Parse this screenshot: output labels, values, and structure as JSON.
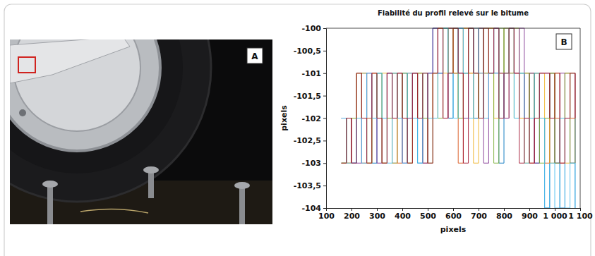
{
  "photo": {
    "panel_label": "A"
  },
  "chart_data": {
    "type": "line",
    "title": "Fiabilité du profil relevé sur le bitume",
    "x_label": "pixels",
    "y_label": "pixels",
    "panel_label": "B",
    "line_style": "step",
    "xlim": [
      100,
      1100
    ],
    "ylim": [
      -104,
      -100
    ],
    "xticks": [
      100,
      200,
      300,
      400,
      500,
      600,
      700,
      800,
      900,
      {
        "value": 1000,
        "label": "1 000"
      },
      {
        "value": 1100,
        "label": "1 100"
      }
    ],
    "yticks": [
      {
        "value": -104,
        "label": "-104"
      },
      {
        "value": -103.5,
        "label": "-103,5"
      },
      {
        "value": -103,
        "label": "-103"
      },
      {
        "value": -102.5,
        "label": "-102,5"
      },
      {
        "value": -102,
        "label": "-102"
      },
      {
        "value": -101.5,
        "label": "-101,5"
      },
      {
        "value": -101,
        "label": "-101"
      },
      {
        "value": -100.5,
        "label": "-100,5"
      },
      {
        "value": -100,
        "label": "-100"
      }
    ],
    "grid": false,
    "x": [
      160,
      180,
      200,
      220,
      240,
      260,
      280,
      300,
      320,
      340,
      360,
      380,
      400,
      420,
      440,
      460,
      480,
      500,
      520,
      540,
      560,
      580,
      600,
      620,
      640,
      660,
      680,
      700,
      720,
      740,
      760,
      780,
      800,
      820,
      840,
      860,
      880,
      900,
      920,
      940,
      960,
      980,
      1000,
      1020,
      1040,
      1060,
      1080
    ],
    "series": [
      {
        "color": "#0072BD",
        "values": [
          -103,
          -102,
          -103,
          -102,
          -101,
          -102,
          -103,
          -101,
          -102,
          -101,
          -103,
          -102,
          -101,
          -102,
          -101,
          -103,
          -102,
          -101,
          -100,
          -101,
          -100,
          -102,
          -101,
          -100,
          -101,
          -100,
          -102,
          -100,
          -101,
          -100,
          -101,
          -103,
          -100,
          -101,
          -100,
          -101,
          -102,
          -101,
          -103,
          -102,
          -104,
          -101,
          -103,
          -104,
          -102,
          -101,
          -104
        ]
      },
      {
        "color": "#D95319",
        "values": [
          -102,
          -103,
          -102,
          -101,
          -103,
          -102,
          -101,
          -102,
          -103,
          -102,
          -101,
          -103,
          -102,
          -101,
          -102,
          -101,
          -103,
          -102,
          -101,
          -100,
          -102,
          -100,
          -101,
          -103,
          -100,
          -101,
          -100,
          -101,
          -102,
          -100,
          -100,
          -101,
          -102,
          -100,
          -101,
          -102,
          -101,
          -103,
          -101,
          -102,
          -103,
          -101,
          -102,
          -103,
          -101,
          -102,
          -101
        ]
      },
      {
        "color": "#EDB120",
        "values": [
          -103,
          -103,
          -102,
          -102,
          -101,
          -103,
          -101,
          -102,
          -101,
          -102,
          -103,
          -101,
          -102,
          -103,
          -101,
          -102,
          -101,
          -102,
          -102,
          -100,
          -101,
          -100,
          -101,
          -102,
          -100,
          -101,
          -103,
          -100,
          -101,
          -100,
          -102,
          -101,
          -100,
          -101,
          -100,
          -102,
          -103,
          -101,
          -102,
          -101,
          -102,
          -103,
          -101,
          -102,
          -103,
          -101,
          -102
        ]
      },
      {
        "color": "#7E2F8E",
        "values": [
          -102,
          -102,
          -103,
          -103,
          -102,
          -101,
          -102,
          -103,
          -102,
          -101,
          -102,
          -101,
          -103,
          -102,
          -101,
          -102,
          -103,
          -101,
          -100,
          -101,
          -102,
          -100,
          -100,
          -101,
          -102,
          -100,
          -101,
          -100,
          -103,
          -101,
          -100,
          -101,
          -102,
          -100,
          -101,
          -100,
          -102,
          -101,
          -103,
          -101,
          -101,
          -102,
          -103,
          -101,
          -102,
          -103,
          -101
        ]
      },
      {
        "color": "#77AC30",
        "values": [
          -103,
          -102,
          -102,
          -101,
          -102,
          -103,
          -102,
          -101,
          -103,
          -102,
          -101,
          -102,
          -101,
          -103,
          -102,
          -101,
          -102,
          -103,
          -101,
          -102,
          -100,
          -101,
          -100,
          -102,
          -101,
          -100,
          -101,
          -102,
          -100,
          -101,
          -103,
          -100,
          -101,
          -100,
          -102,
          -101,
          -101,
          -102,
          -101,
          -103,
          -102,
          -101,
          -103,
          -102,
          -101,
          -103,
          -102
        ]
      },
      {
        "color": "#4DBEEE",
        "values": [
          -102,
          -103,
          -103,
          -102,
          -103,
          -101,
          -102,
          -101,
          -102,
          -103,
          -101,
          -102,
          -103,
          -101,
          -102,
          -103,
          -101,
          -102,
          -102,
          -101,
          -100,
          -101,
          -102,
          -100,
          -101,
          -102,
          -100,
          -101,
          -102,
          -101,
          -100,
          -102,
          -101,
          -100,
          -102,
          -101,
          -103,
          -102,
          -101,
          -102,
          -104,
          -103,
          -104,
          -102,
          -104,
          -103,
          -104
        ]
      },
      {
        "color": "#A2142F",
        "values": [
          -103,
          -102,
          -103,
          -101,
          -102,
          -103,
          -101,
          -102,
          -103,
          -101,
          -102,
          -101,
          -102,
          -103,
          -101,
          -102,
          -101,
          -103,
          -101,
          -100,
          -102,
          -101,
          -100,
          -101,
          -103,
          -100,
          -101,
          -102,
          -100,
          -101,
          -100,
          -102,
          -101,
          -100,
          -101,
          -103,
          -102,
          -103,
          -102,
          -101,
          -101,
          -102,
          -101,
          -103,
          -102,
          -101,
          -102
        ]
      }
    ]
  }
}
